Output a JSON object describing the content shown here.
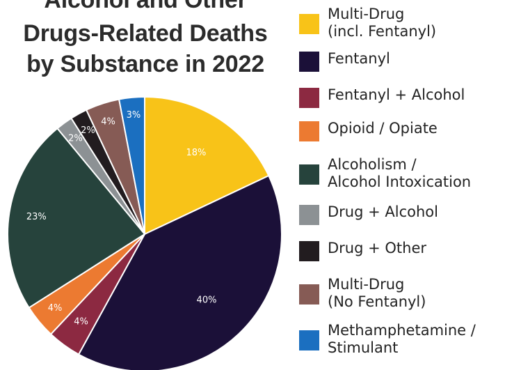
{
  "chart_data": {
    "type": "pie",
    "title_lines": [
      "Alcohol and Other",
      "Drugs-Related Deaths",
      "by Substance in 2022"
    ],
    "slices": [
      {
        "label": "Multi-Drug\n(incl. Fentanyl)",
        "value": 18,
        "value_label": "18%",
        "color": "#f8c318"
      },
      {
        "label": "Fentanyl",
        "value": 40,
        "value_label": "40%",
        "color": "#1b1038"
      },
      {
        "label": "Fentanyl + Alcohol",
        "value": 4,
        "value_label": "4%",
        "color": "#8c2941"
      },
      {
        "label": "Opioid / Opiate",
        "value": 4,
        "value_label": "4%",
        "color": "#ec7a31"
      },
      {
        "label": "Alcoholism /\nAlcohol Intoxication",
        "value": 23,
        "value_label": "23%",
        "color": "#26433c"
      },
      {
        "label": "Drug + Alcohol",
        "value": 2,
        "value_label": "2%",
        "color": "#8c9194"
      },
      {
        "label": "Drug + Other",
        "value": 2,
        "value_label": "2%",
        "color": "#221c1f"
      },
      {
        "label": "Multi-Drug\n(No Fentanyl)",
        "value": 4,
        "value_label": "4%",
        "color": "#865b55"
      },
      {
        "label": "Methamphetamine /\nStimulant",
        "value": 3,
        "value_label": "3%",
        "color": "#1b6fc0"
      }
    ],
    "start_angle_deg": 0,
    "direction": "clockwise",
    "legend_position": "right"
  }
}
